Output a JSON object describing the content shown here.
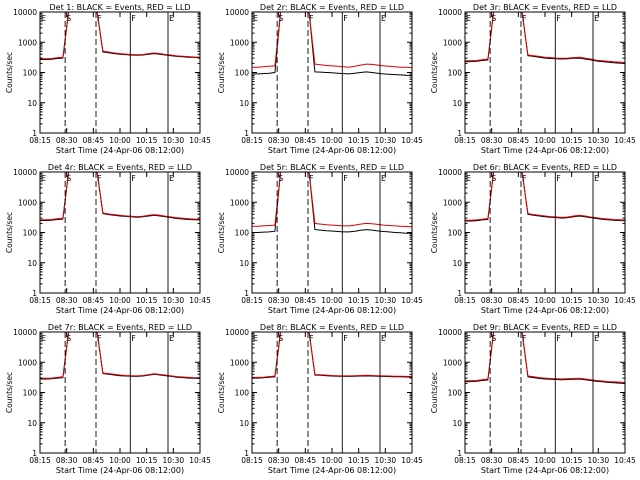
{
  "figure": {
    "xlabel": "Start Time (24-Apr-06 08:12:00)",
    "ylabel": "Counts/sec",
    "x_tick_labels": [
      "08:15",
      "08:30",
      "08:45",
      "10:00",
      "10:15",
      "10:30",
      "10:45"
    ],
    "y_tick_labels": [
      "1",
      "10",
      "100",
      "1000",
      "10000"
    ],
    "colors": {
      "events": "#000000",
      "lld": "#e00000",
      "axes": "#000000",
      "background": "#ffffff"
    }
  },
  "chart_data": [
    {
      "type": "line",
      "panel": 1,
      "title": "Det  1: BLACK = Events, RED = LLD",
      "markers": [
        "E",
        "S",
        "F",
        "F",
        "E"
      ],
      "ylim": [
        1,
        10000
      ],
      "yscale": "log",
      "grid": false,
      "x": [
        0,
        0.5,
        1,
        1.5,
        2,
        2.5,
        3,
        3.5,
        4,
        4.5,
        5,
        5.5,
        6,
        6.5,
        7,
        7.5,
        8,
        8.5,
        9,
        9.5,
        10,
        10.5,
        11,
        11.5,
        12,
        12.5,
        13,
        13.5,
        14
      ],
      "series": [
        {
          "name": "BLACK = Events",
          "values": [
            270,
            270,
            275,
            290,
            300,
            10000,
            10000,
            10000,
            10000,
            10000,
            10000,
            480,
            450,
            420,
            400,
            390,
            380,
            370,
            380,
            400,
            420,
            400,
            380,
            360,
            340,
            330,
            320,
            315,
            310
          ]
        },
        {
          "name": "RED = LLD",
          "values": [
            285,
            285,
            290,
            305,
            320,
            10000,
            10000,
            10000,
            10000,
            10000,
            10000,
            510,
            475,
            440,
            420,
            405,
            395,
            385,
            395,
            420,
            440,
            420,
            395,
            375,
            355,
            345,
            335,
            325,
            320
          ]
        }
      ]
    },
    {
      "type": "line",
      "panel": 2,
      "title": "Det  2r: BLACK = Events, RED = LLD",
      "markers": [
        "E",
        "S",
        "F",
        "F",
        "E"
      ],
      "ylim": [
        1,
        10000
      ],
      "yscale": "log",
      "grid": false,
      "x": [
        0,
        0.5,
        1,
        1.5,
        2,
        2.5,
        3,
        3.5,
        4,
        4.5,
        5,
        5.5,
        6,
        6.5,
        7,
        7.5,
        8,
        8.5,
        9,
        9.5,
        10,
        10.5,
        11,
        11.5,
        12,
        12.5,
        13,
        13.5,
        14
      ],
      "series": [
        {
          "name": "BLACK = Events",
          "values": [
            90,
            90,
            92,
            95,
            100,
            10000,
            10000,
            10000,
            10000,
            10000,
            10000,
            105,
            103,
            100,
            98,
            95,
            92,
            90,
            95,
            100,
            105,
            100,
            95,
            90,
            88,
            85,
            83,
            80,
            80
          ]
        },
        {
          "name": "RED = LLD",
          "values": [
            150,
            150,
            155,
            160,
            165,
            10000,
            10000,
            10000,
            10000,
            10000,
            10000,
            190,
            180,
            170,
            165,
            160,
            155,
            150,
            160,
            175,
            190,
            185,
            175,
            165,
            160,
            155,
            150,
            148,
            145
          ]
        }
      ]
    },
    {
      "type": "line",
      "panel": 3,
      "title": "Det  3r: BLACK = Events, RED = LLD",
      "markers": [
        "E",
        "S",
        "F",
        "F",
        "E"
      ],
      "ylim": [
        1,
        10000
      ],
      "yscale": "log",
      "grid": false,
      "x": [
        0,
        0.5,
        1,
        1.5,
        2,
        2.5,
        3,
        3.5,
        4,
        4.5,
        5,
        5.5,
        6,
        6.5,
        7,
        7.5,
        8,
        8.5,
        9,
        9.5,
        10,
        10.5,
        11,
        11.5,
        12,
        12.5,
        13,
        13.5,
        14
      ],
      "series": [
        {
          "name": "BLACK = Events",
          "values": [
            230,
            230,
            235,
            250,
            260,
            10000,
            10000,
            10000,
            10000,
            10000,
            10000,
            360,
            340,
            320,
            300,
            290,
            285,
            280,
            285,
            295,
            300,
            280,
            260,
            240,
            230,
            220,
            210,
            205,
            200
          ]
        },
        {
          "name": "RED = LLD",
          "values": [
            245,
            245,
            250,
            265,
            280,
            10000,
            10000,
            10000,
            10000,
            10000,
            10000,
            380,
            360,
            340,
            320,
            310,
            300,
            295,
            300,
            310,
            320,
            300,
            280,
            255,
            245,
            235,
            225,
            220,
            215
          ]
        }
      ]
    },
    {
      "type": "line",
      "panel": 4,
      "title": "Det  4r: BLACK = Events, RED = LLD",
      "markers": [
        "E",
        "S",
        "F",
        "F",
        "E"
      ],
      "ylim": [
        1,
        10000
      ],
      "yscale": "log",
      "grid": false,
      "x": [
        0,
        0.5,
        1,
        1.5,
        2,
        2.5,
        3,
        3.5,
        4,
        4.5,
        5,
        5.5,
        6,
        6.5,
        7,
        7.5,
        8,
        8.5,
        9,
        9.5,
        10,
        10.5,
        11,
        11.5,
        12,
        12.5,
        13,
        13.5,
        14
      ],
      "series": [
        {
          "name": "BLACK = Events",
          "values": [
            250,
            250,
            255,
            270,
            280,
            10000,
            10000,
            10000,
            10000,
            10000,
            10000,
            420,
            390,
            370,
            350,
            340,
            330,
            320,
            330,
            350,
            370,
            350,
            330,
            310,
            290,
            280,
            270,
            265,
            260
          ]
        },
        {
          "name": "RED = LLD",
          "values": [
            265,
            265,
            270,
            285,
            300,
            10000,
            10000,
            10000,
            10000,
            10000,
            10000,
            440,
            410,
            390,
            370,
            355,
            345,
            335,
            345,
            370,
            390,
            370,
            345,
            325,
            305,
            295,
            285,
            278,
            275
          ]
        }
      ]
    },
    {
      "type": "line",
      "panel": 5,
      "title": "Det  5r: BLACK = Events, RED = LLD",
      "markers": [
        "E",
        "S",
        "F",
        "F",
        "E"
      ],
      "ylim": [
        1,
        10000
      ],
      "yscale": "log",
      "grid": false,
      "x": [
        0,
        0.5,
        1,
        1.5,
        2,
        2.5,
        3,
        3.5,
        4,
        4.5,
        5,
        5.5,
        6,
        6.5,
        7,
        7.5,
        8,
        8.5,
        9,
        9.5,
        10,
        10.5,
        11,
        11.5,
        12,
        12.5,
        13,
        13.5,
        14
      ],
      "series": [
        {
          "name": "BLACK = Events",
          "values": [
            100,
            100,
            103,
            105,
            110,
            10000,
            10000,
            10000,
            10000,
            10000,
            10000,
            125,
            120,
            115,
            112,
            108,
            105,
            105,
            110,
            118,
            125,
            120,
            113,
            108,
            105,
            100,
            98,
            95,
            95
          ]
        },
        {
          "name": "RED = LLD",
          "values": [
            160,
            160,
            165,
            170,
            175,
            10000,
            10000,
            10000,
            10000,
            10000,
            10000,
            200,
            190,
            180,
            175,
            170,
            165,
            165,
            175,
            190,
            200,
            195,
            185,
            175,
            170,
            165,
            160,
            158,
            155
          ]
        }
      ]
    },
    {
      "type": "line",
      "panel": 6,
      "title": "Det  6r: BLACK = Events, RED = LLD",
      "markers": [
        "E",
        "S",
        "F",
        "F",
        "E"
      ],
      "ylim": [
        1,
        10000
      ],
      "yscale": "log",
      "grid": false,
      "x": [
        0,
        0.5,
        1,
        1.5,
        2,
        2.5,
        3,
        3.5,
        4,
        4.5,
        5,
        5.5,
        6,
        6.5,
        7,
        7.5,
        8,
        8.5,
        9,
        9.5,
        10,
        10.5,
        11,
        11.5,
        12,
        12.5,
        13,
        13.5,
        14
      ],
      "series": [
        {
          "name": "BLACK = Events",
          "values": [
            240,
            240,
            245,
            260,
            270,
            10000,
            10000,
            10000,
            10000,
            10000,
            10000,
            400,
            370,
            350,
            330,
            320,
            310,
            300,
            310,
            330,
            350,
            330,
            310,
            290,
            275,
            265,
            255,
            250,
            245
          ]
        },
        {
          "name": "RED = LLD",
          "values": [
            255,
            255,
            260,
            275,
            290,
            10000,
            10000,
            10000,
            10000,
            10000,
            10000,
            420,
            390,
            370,
            350,
            335,
            325,
            315,
            325,
            350,
            370,
            350,
            325,
            305,
            290,
            280,
            270,
            262,
            258
          ]
        }
      ]
    },
    {
      "type": "line",
      "panel": 7,
      "title": "Det  7r: BLACK = Events, RED = LLD",
      "markers": [
        "E",
        "S",
        "F",
        "F",
        "E"
      ],
      "ylim": [
        1,
        10000
      ],
      "yscale": "log",
      "grid": false,
      "x": [
        0,
        0.5,
        1,
        1.5,
        2,
        2.5,
        3,
        3.5,
        4,
        4.5,
        5,
        5.5,
        6,
        6.5,
        7,
        7.5,
        8,
        8.5,
        9,
        9.5,
        10,
        10.5,
        11,
        11.5,
        12,
        12.5,
        13,
        13.5,
        14
      ],
      "series": [
        {
          "name": "BLACK = Events",
          "values": [
            280,
            280,
            285,
            300,
            310,
            10000,
            10000,
            10000,
            10000,
            10000,
            10000,
            420,
            400,
            380,
            360,
            350,
            345,
            340,
            350,
            375,
            400,
            380,
            360,
            340,
            320,
            310,
            300,
            295,
            290
          ]
        },
        {
          "name": "RED = LLD",
          "values": [
            295,
            295,
            300,
            315,
            330,
            10000,
            10000,
            10000,
            10000,
            10000,
            10000,
            440,
            420,
            400,
            380,
            365,
            360,
            355,
            365,
            390,
            415,
            395,
            375,
            355,
            335,
            325,
            315,
            308,
            305
          ]
        }
      ]
    },
    {
      "type": "line",
      "panel": 8,
      "title": "Det  8r: BLACK = Events, RED = LLD",
      "markers": [
        "E",
        "S",
        "F",
        "F",
        "E"
      ],
      "ylim": [
        1,
        10000
      ],
      "yscale": "log",
      "grid": false,
      "x": [
        0,
        0.5,
        1,
        1.5,
        2,
        2.5,
        3,
        3.5,
        4,
        4.5,
        5,
        5.5,
        6,
        6.5,
        7,
        7.5,
        8,
        8.5,
        9,
        9.5,
        10,
        10.5,
        11,
        11.5,
        12,
        12.5,
        13,
        13.5,
        14
      ],
      "series": [
        {
          "name": "BLACK = Events",
          "values": [
            300,
            300,
            305,
            320,
            330,
            10000,
            10000,
            10000,
            10000,
            10000,
            10000,
            380,
            370,
            360,
            350,
            345,
            340,
            340,
            345,
            350,
            355,
            350,
            345,
            340,
            335,
            330,
            330,
            325,
            325
          ]
        },
        {
          "name": "RED = LLD",
          "values": [
            315,
            315,
            320,
            335,
            350,
            10000,
            10000,
            10000,
            10000,
            10000,
            10000,
            395,
            385,
            375,
            365,
            360,
            355,
            355,
            360,
            365,
            370,
            365,
            360,
            355,
            350,
            345,
            345,
            340,
            340
          ]
        }
      ]
    },
    {
      "type": "line",
      "panel": 9,
      "title": "Det  9r: BLACK = Events, RED = LLD",
      "markers": [
        "E",
        "S",
        "F",
        "F",
        "E"
      ],
      "ylim": [
        1,
        10000
      ],
      "yscale": "log",
      "grid": false,
      "x": [
        0,
        0.5,
        1,
        1.5,
        2,
        2.5,
        3,
        3.5,
        4,
        4.5,
        5,
        5.5,
        6,
        6.5,
        7,
        7.5,
        8,
        8.5,
        9,
        9.5,
        10,
        10.5,
        11,
        11.5,
        12,
        12.5,
        13,
        13.5,
        14
      ],
      "series": [
        {
          "name": "BLACK = Events",
          "values": [
            230,
            230,
            235,
            250,
            260,
            10000,
            10000,
            10000,
            10000,
            10000,
            10000,
            330,
            310,
            290,
            280,
            275,
            270,
            265,
            270,
            275,
            280,
            265,
            250,
            235,
            225,
            215,
            210,
            205,
            200
          ]
        },
        {
          "name": "RED = LLD",
          "values": [
            245,
            245,
            250,
            265,
            280,
            10000,
            10000,
            10000,
            10000,
            10000,
            10000,
            350,
            330,
            310,
            300,
            290,
            285,
            280,
            285,
            290,
            295,
            280,
            265,
            250,
            240,
            230,
            225,
            220,
            215
          ]
        }
      ]
    }
  ]
}
